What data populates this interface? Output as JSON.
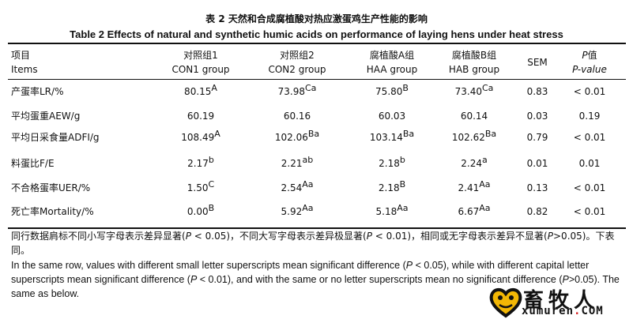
{
  "title": {
    "cn": "表 2 天然和合成腐植酸对热应激蛋鸡生产性能的影响",
    "en": "Table 2 Effects of natural and synthetic humic acids on performance of laying hens under heat stress"
  },
  "header": {
    "items": {
      "cn": "项目",
      "en": "Items"
    },
    "con1": {
      "cn": "对照组1",
      "en": "CON1 group"
    },
    "con2": {
      "cn": "对照组2",
      "en": "CON2 group"
    },
    "haa": {
      "cn": "腐植酸A组",
      "en": "HAA group"
    },
    "hab": {
      "cn": "腐植酸B组",
      "en": "HAB group"
    },
    "sem": "SEM",
    "p": {
      "cn_prefix": "P",
      "cn_suffix": "值",
      "en": "P-value"
    }
  },
  "rows": [
    {
      "item": "产蛋率LR/%",
      "con1": "80.15",
      "con1_sup": "A",
      "con2": "73.98",
      "con2_sup": "Ca",
      "haa": "75.80",
      "haa_sup": "B",
      "hab": "73.40",
      "hab_sup": "Ca",
      "sem": "0.83",
      "p": "< 0.01"
    },
    {
      "item": "平均蛋重AEW/g",
      "con1": "60.19",
      "con1_sup": "",
      "con2": "60.16",
      "con2_sup": "",
      "haa": "60.03",
      "haa_sup": "",
      "hab": "60.14",
      "hab_sup": "",
      "sem": "0.03",
      "p": "0.19"
    },
    {
      "item": "平均日采食量ADFI/g",
      "con1": "108.49",
      "con1_sup": "A",
      "con2": "102.06",
      "con2_sup": "Ba",
      "haa": "103.14",
      "haa_sup": "Ba",
      "hab": "102.62",
      "hab_sup": "Ba",
      "sem": "0.79",
      "p": "< 0.01"
    },
    {
      "item": "料蛋比F/E",
      "con1": "2.17",
      "con1_sup": "b",
      "con2": "2.21",
      "con2_sup": "ab",
      "haa": "2.18",
      "haa_sup": "b",
      "hab": "2.24",
      "hab_sup": "a",
      "sem": "0.01",
      "p": "0.01"
    },
    {
      "item": "不合格蛋率UER/%",
      "con1": "1.50",
      "con1_sup": "C",
      "con2": "2.54",
      "con2_sup": "Aa",
      "haa": "2.18",
      "haa_sup": "B",
      "hab": "2.41",
      "hab_sup": "Aa",
      "sem": "0.13",
      "p": "< 0.01"
    },
    {
      "item": "死亡率Mortality/%",
      "con1": "0.00",
      "con1_sup": "B",
      "con2": "5.92",
      "con2_sup": "Aa",
      "haa": "5.18",
      "haa_sup": "Aa",
      "hab": "6.67",
      "hab_sup": "Aa",
      "sem": "0.82",
      "p": "< 0.01"
    }
  ],
  "notes": {
    "cn_line1": "同行数据肩标不同小写字母表示差异显著(",
    "cn_p1": "P",
    "cn_mid1": " < 0.05)，不同大写字母表示差异极显著(",
    "cn_p2": "P",
    "cn_mid2": " < 0.01)，相同或无字母表示差异不显著(",
    "cn_p3": "P",
    "cn_end": ">0.05)。下表同。",
    "en_a": "In the same row, values with different small letter superscripts mean significant difference (",
    "en_p1": "P",
    "en_b": " < 0.05), while with different capital letter superscripts mean significant difference (",
    "en_p2": "P",
    "en_c": " < 0.01), and with the same or no letter superscripts mean no significant difference (",
    "en_p3": "P",
    "en_d": ">0.05). The same as below."
  },
  "watermark": {
    "cn": "畜牧人",
    "en_pre": "xumuren",
    "en_dot": ".",
    "en_post": "COM"
  }
}
